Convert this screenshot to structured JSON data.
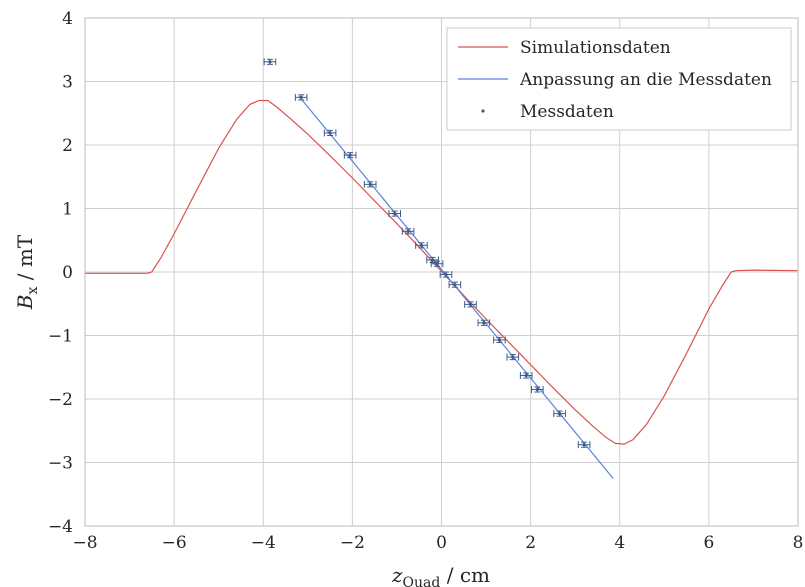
{
  "chart_data": {
    "type": "line",
    "xlim": [
      -8,
      8
    ],
    "ylim": [
      -4,
      4
    ],
    "xticks": [
      -8,
      -6,
      -4,
      -2,
      0,
      2,
      4,
      6,
      8
    ],
    "yticks": [
      -4,
      -3,
      -2,
      -1,
      0,
      1,
      2,
      3,
      4
    ],
    "xticklabels": [
      "−8",
      "−6",
      "−4",
      "−2",
      "0",
      "2",
      "4",
      "6",
      "8"
    ],
    "yticklabels": [
      "−4",
      "−3",
      "−2",
      "−1",
      "0",
      "1",
      "2",
      "3",
      "4"
    ],
    "xlabel": {
      "main": "z",
      "sub": "Quad",
      "unit": " / cm"
    },
    "ylabel": {
      "main": "B",
      "sub": "x",
      "unit": " / mT"
    },
    "grid": true,
    "legend_position": "top-right",
    "colors": {
      "simulation": "#d9534f",
      "fit": "#5b82e0",
      "data": "#3d5a8a",
      "grid": "#cfcfcf"
    },
    "series": [
      {
        "name": "Simulationsdaten",
        "kind": "line",
        "x": [
          -8.0,
          -7.0,
          -6.6,
          -6.5,
          -6.3,
          -6.0,
          -5.5,
          -5.0,
          -4.6,
          -4.3,
          -4.1,
          -3.9,
          -3.7,
          -3.4,
          -3.0,
          -2.5,
          -2.0,
          -1.5,
          -1.0,
          -0.5,
          0.0,
          0.5,
          1.0,
          1.5,
          2.0,
          2.5,
          3.0,
          3.4,
          3.7,
          3.9,
          4.1,
          4.3,
          4.6,
          5.0,
          5.5,
          6.0,
          6.3,
          6.5,
          6.6,
          7.0,
          8.0
        ],
        "y": [
          -0.02,
          -0.02,
          -0.02,
          0.0,
          0.22,
          0.6,
          1.28,
          1.95,
          2.4,
          2.64,
          2.7,
          2.7,
          2.6,
          2.42,
          2.17,
          1.83,
          1.48,
          1.12,
          0.76,
          0.39,
          0.01,
          -0.37,
          -0.74,
          -1.1,
          -1.46,
          -1.82,
          -2.17,
          -2.43,
          -2.61,
          -2.7,
          -2.71,
          -2.64,
          -2.4,
          -1.95,
          -1.28,
          -0.58,
          -0.22,
          0.0,
          0.02,
          0.03,
          0.02
        ]
      },
      {
        "name": "Anpassung an die Messdaten",
        "kind": "line",
        "x": [
          -3.2,
          3.85
        ],
        "y": [
          2.77,
          -3.25
        ]
      },
      {
        "name": "Messdaten",
        "kind": "errorbar",
        "xerr": 0.13,
        "yerr": 0.04,
        "x": [
          -3.85,
          -3.15,
          -2.5,
          -2.05,
          -1.6,
          -1.05,
          -0.75,
          -0.45,
          -0.2,
          -0.1,
          0.1,
          0.3,
          0.65,
          0.95,
          1.3,
          1.6,
          1.9,
          2.15,
          2.65,
          3.2
        ],
        "y": [
          3.31,
          2.75,
          2.19,
          1.84,
          1.38,
          0.92,
          0.64,
          0.42,
          0.19,
          0.13,
          -0.04,
          -0.2,
          -0.51,
          -0.8,
          -1.07,
          -1.34,
          -1.63,
          -1.85,
          -2.23,
          -2.72
        ]
      }
    ]
  }
}
